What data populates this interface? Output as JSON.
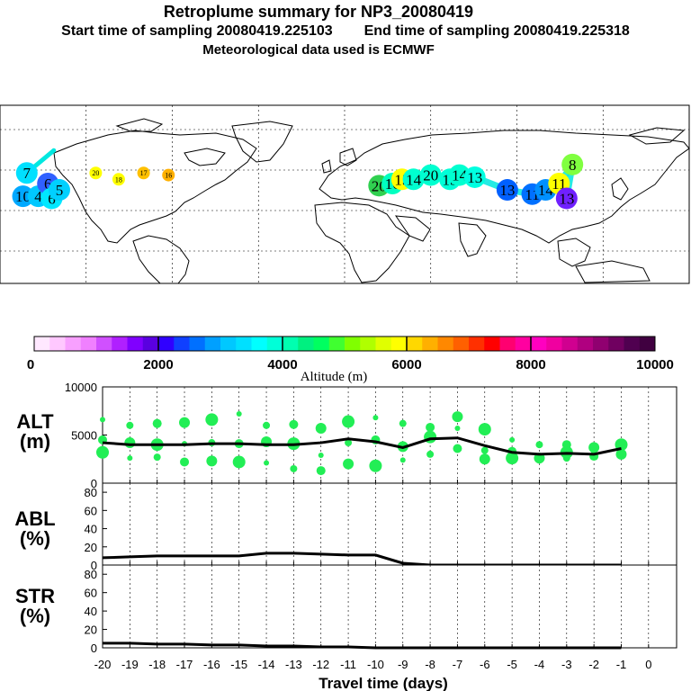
{
  "header": {
    "title": "Retroplume summary for NP3_20080419",
    "start_time": "Start time of sampling 20080419.225103",
    "end_time": "End time of sampling 20080419.225318",
    "met": "Meteorological data used is ECMWF"
  },
  "colorbar": {
    "ticks": [
      "0",
      "2000",
      "4000",
      "6000",
      "8000",
      "10000"
    ],
    "label": "Altitude (m)",
    "colors": [
      "#ffe8ff",
      "#ffc8ff",
      "#f8a0ff",
      "#f080ff",
      "#d050ff",
      "#b020ff",
      "#8000ff",
      "#5a00e0",
      "#3000ff",
      "#1040ff",
      "#0070ff",
      "#00a0ff",
      "#00c8ff",
      "#00e0ff",
      "#00ffff",
      "#00ffd8",
      "#00ffb0",
      "#00f080",
      "#00ff60",
      "#40ff30",
      "#80ff00",
      "#b0ff00",
      "#e0ff00",
      "#ffff00",
      "#ffd800",
      "#ffb000",
      "#ff8800",
      "#ff6000",
      "#ff3000",
      "#ff0000",
      "#ff0070",
      "#ff00a0",
      "#ff00c0",
      "#f000a0",
      "#d00090",
      "#b00080",
      "#900070",
      "#700060",
      "#500050",
      "#400040"
    ]
  },
  "map": {
    "markers": [
      {
        "lon": -168,
        "lat": 37,
        "label": "10",
        "color": "#00a8ff"
      },
      {
        "lon": -166,
        "lat": 48,
        "label": "7",
        "color": "#00e0ff"
      },
      {
        "lon": -160,
        "lat": 37,
        "label": "4",
        "color": "#00c8ff"
      },
      {
        "lon": -155,
        "lat": 43,
        "label": "6",
        "color": "#3060ff"
      },
      {
        "lon": -153,
        "lat": 36,
        "label": "6",
        "color": "#00e8ff"
      },
      {
        "lon": -149,
        "lat": 40,
        "label": "5",
        "color": "#00d0ff"
      },
      {
        "lon": 18,
        "lat": 42,
        "label": "20",
        "color": "#30d050"
      },
      {
        "lon": 25,
        "lat": 43,
        "label": "16",
        "color": "#00ffc0"
      },
      {
        "lon": 30,
        "lat": 45,
        "label": "15",
        "color": "#ffff00"
      },
      {
        "lon": 36,
        "lat": 45,
        "label": "14",
        "color": "#00ffd0"
      },
      {
        "lon": 45,
        "lat": 47,
        "label": "20",
        "color": "#00ffd0"
      },
      {
        "lon": 55,
        "lat": 45,
        "label": "15",
        "color": "#00ffd8"
      },
      {
        "lon": 60,
        "lat": 47,
        "label": "14",
        "color": "#00ffd0"
      },
      {
        "lon": 68,
        "lat": 46,
        "label": "13",
        "color": "#00ffe0"
      },
      {
        "lon": 85,
        "lat": 40,
        "label": "13",
        "color": "#0060ff"
      },
      {
        "lon": 98,
        "lat": 38,
        "label": "11",
        "color": "#0070ff"
      },
      {
        "lon": 105,
        "lat": 40,
        "label": "14",
        "color": "#0090ff"
      },
      {
        "lon": 112,
        "lat": 43,
        "label": "11",
        "color": "#ffff00"
      },
      {
        "lon": 119,
        "lat": 52,
        "label": "8",
        "color": "#80ff40"
      },
      {
        "lon": 116,
        "lat": 36,
        "label": "13",
        "color": "#7020ff"
      }
    ],
    "small_labels": [
      {
        "lon": -130,
        "lat": 48,
        "label": "20",
        "color": "#ffff00"
      },
      {
        "lon": -118,
        "lat": 45,
        "label": "18",
        "color": "#ffff00"
      },
      {
        "lon": -105,
        "lat": 48,
        "label": "17",
        "color": "#ffc000"
      },
      {
        "lon": -92,
        "lat": 47,
        "label": "16",
        "color": "#ffb000"
      }
    ]
  },
  "chart_data": [
    {
      "type": "line",
      "panel": "ALT",
      "title": "ALT",
      "ylabel": "(m)",
      "xlabel": "Travel time (days)",
      "ylim": [
        0,
        10000
      ],
      "yticks": [
        "0",
        "5000",
        "10000"
      ],
      "x": [
        -20,
        -19,
        -18,
        -17,
        -16,
        -15,
        -14,
        -13,
        -12,
        -11,
        -10,
        -9,
        -8,
        -7,
        -6,
        -5,
        -4,
        -3,
        -2,
        -1
      ],
      "values": [
        4200,
        4000,
        4000,
        4000,
        4100,
        4100,
        4000,
        4000,
        4200,
        4600,
        4300,
        3700,
        4600,
        4700,
        3900,
        3200,
        3000,
        3100,
        3000,
        3600
      ],
      "points": [
        {
          "x": -20,
          "y": 6600
        },
        {
          "x": -20,
          "y": 4500
        },
        {
          "x": -20,
          "y": 3200
        },
        {
          "x": -19,
          "y": 6000
        },
        {
          "x": -19,
          "y": 4200
        },
        {
          "x": -19,
          "y": 2600
        },
        {
          "x": -18,
          "y": 6200
        },
        {
          "x": -18,
          "y": 4000
        },
        {
          "x": -18,
          "y": 2700
        },
        {
          "x": -17,
          "y": 6300
        },
        {
          "x": -17,
          "y": 4100
        },
        {
          "x": -17,
          "y": 2200
        },
        {
          "x": -16,
          "y": 6600
        },
        {
          "x": -16,
          "y": 4200
        },
        {
          "x": -16,
          "y": 2300
        },
        {
          "x": -15,
          "y": 7200
        },
        {
          "x": -15,
          "y": 4100
        },
        {
          "x": -15,
          "y": 2200
        },
        {
          "x": -14,
          "y": 6000
        },
        {
          "x": -14,
          "y": 4300
        },
        {
          "x": -14,
          "y": 2100
        },
        {
          "x": -13,
          "y": 6100
        },
        {
          "x": -13,
          "y": 4100
        },
        {
          "x": -13,
          "y": 1500
        },
        {
          "x": -12,
          "y": 5700
        },
        {
          "x": -12,
          "y": 2900
        },
        {
          "x": -12,
          "y": 1300
        },
        {
          "x": -11,
          "y": 6400
        },
        {
          "x": -11,
          "y": 4200
        },
        {
          "x": -11,
          "y": 2000
        },
        {
          "x": -10,
          "y": 6800
        },
        {
          "x": -10,
          "y": 4500
        },
        {
          "x": -10,
          "y": 1800
        },
        {
          "x": -9,
          "y": 6200
        },
        {
          "x": -9,
          "y": 3800
        },
        {
          "x": -9,
          "y": 2400
        },
        {
          "x": -8,
          "y": 5800
        },
        {
          "x": -8,
          "y": 4800
        },
        {
          "x": -8,
          "y": 3000
        },
        {
          "x": -7,
          "y": 6900
        },
        {
          "x": -7,
          "y": 5700
        },
        {
          "x": -7,
          "y": 3600
        },
        {
          "x": -6,
          "y": 5600
        },
        {
          "x": -6,
          "y": 3400
        },
        {
          "x": -6,
          "y": 2500
        },
        {
          "x": -5,
          "y": 4500
        },
        {
          "x": -5,
          "y": 3300
        },
        {
          "x": -5,
          "y": 2600
        },
        {
          "x": -4,
          "y": 4000
        },
        {
          "x": -4,
          "y": 2600
        },
        {
          "x": -4,
          "y": 2300
        },
        {
          "x": -3,
          "y": 4000
        },
        {
          "x": -3,
          "y": 3200
        },
        {
          "x": -3,
          "y": 2600
        },
        {
          "x": -2,
          "y": 3700
        },
        {
          "x": -2,
          "y": 3200
        },
        {
          "x": -2,
          "y": 2800
        },
        {
          "x": -1,
          "y": 4000
        },
        {
          "x": -1,
          "y": 3300
        },
        {
          "x": -1,
          "y": 3000
        }
      ]
    },
    {
      "type": "line",
      "panel": "ABL",
      "title": "ABL",
      "ylabel": "(%)",
      "ylim": [
        0,
        90
      ],
      "yticks": [
        "0",
        "20",
        "40",
        "60",
        "80"
      ],
      "x": [
        -20,
        -19,
        -18,
        -17,
        -16,
        -15,
        -14,
        -13,
        -12,
        -11,
        -10,
        -9,
        -8,
        -7,
        -6,
        -5,
        -4,
        -3,
        -2,
        -1
      ],
      "values": [
        8,
        9,
        10,
        10,
        10,
        10,
        13,
        13,
        12,
        11,
        11,
        2,
        0,
        0,
        0,
        0,
        0,
        0,
        0,
        0
      ]
    },
    {
      "type": "line",
      "panel": "STR",
      "title": "STR",
      "ylabel": "(%)",
      "ylim": [
        0,
        90
      ],
      "yticks": [
        "0",
        "20",
        "40",
        "60",
        "80"
      ],
      "x": [
        -20,
        -19,
        -18,
        -17,
        -16,
        -15,
        -14,
        -13,
        -12,
        -11,
        -10,
        -9,
        -8,
        -7,
        -6,
        -5,
        -4,
        -3,
        -2,
        -1
      ],
      "values": [
        5,
        5,
        4,
        4,
        3,
        3,
        2,
        2,
        1,
        1,
        0,
        0,
        0,
        0,
        0,
        0,
        0,
        0,
        0,
        0
      ],
      "xticks": [
        "-20",
        "-19",
        "-18",
        "-17",
        "-16",
        "-15",
        "-14",
        "-13",
        "-12",
        "-11",
        "-10",
        "-9",
        "-8",
        "-7",
        "-6",
        "-5",
        "-4",
        "-3",
        "-2",
        "-1",
        "0"
      ]
    }
  ]
}
